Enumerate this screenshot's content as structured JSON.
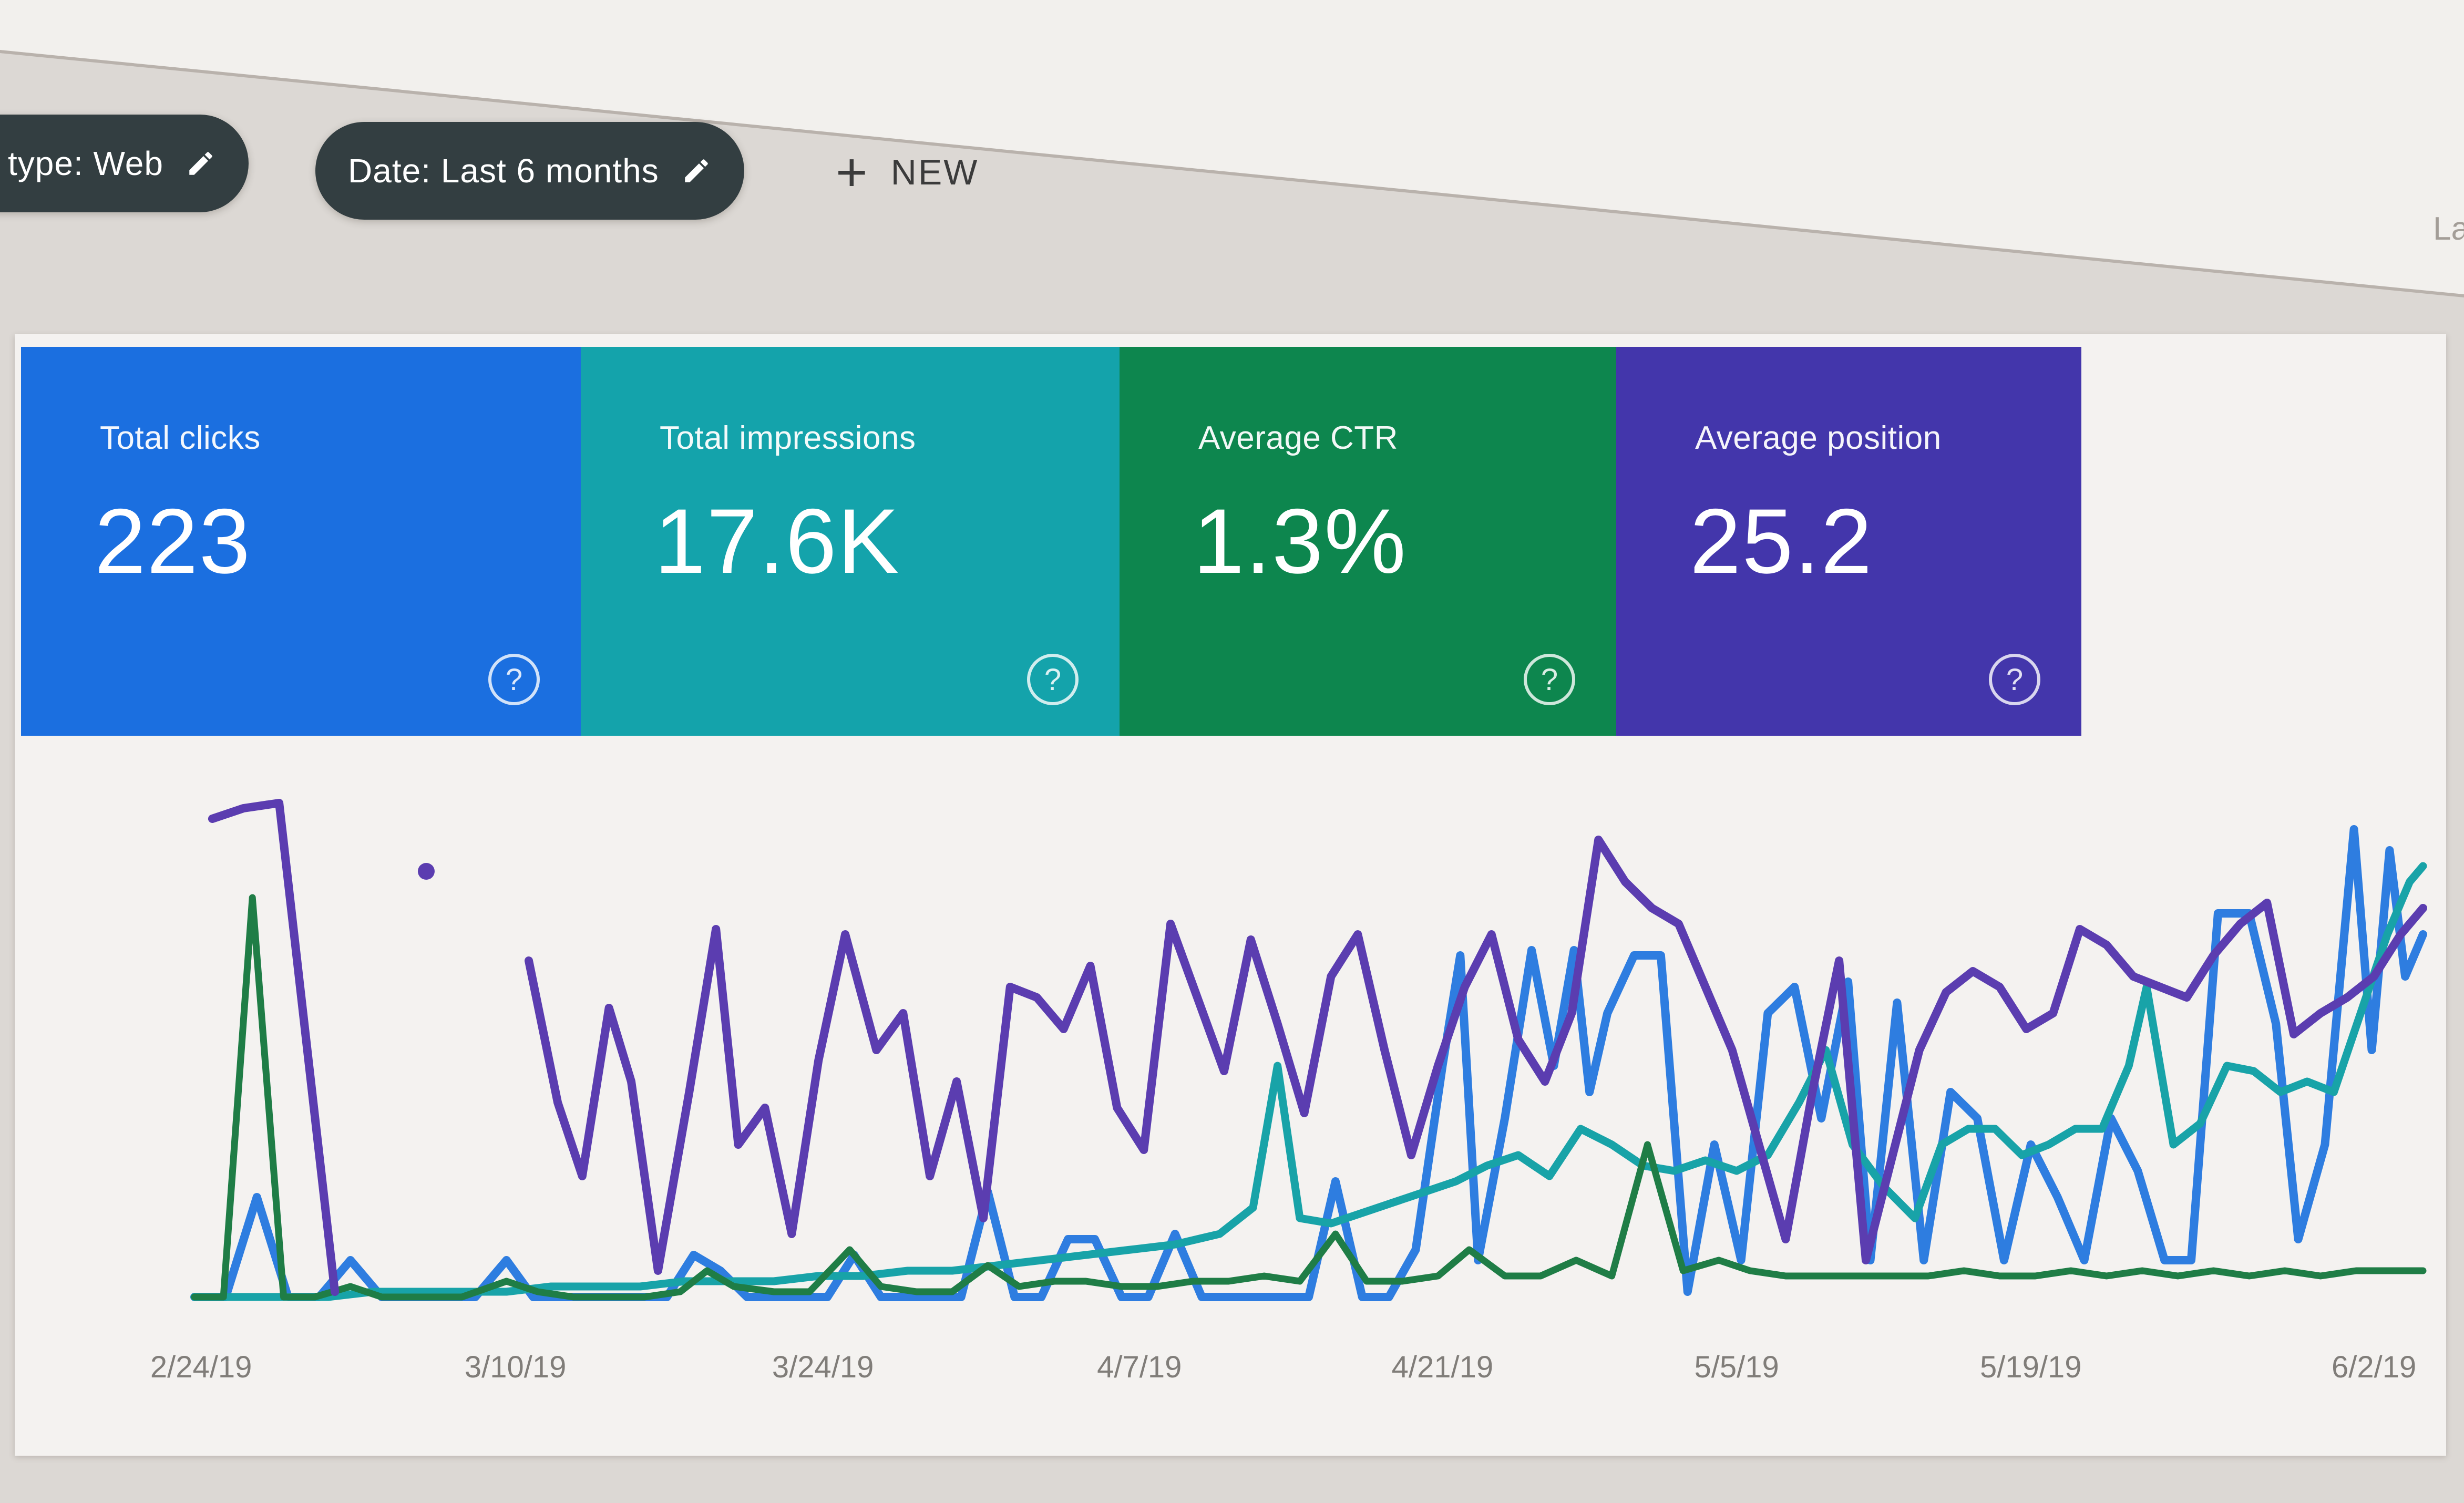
{
  "filters": {
    "type_chip": {
      "label": "type: Web"
    },
    "date_chip": {
      "label": "Date: Last 6 months"
    },
    "new_button": {
      "icon": "+",
      "label": "NEW"
    }
  },
  "partial_text_right": "La",
  "metric_cards": [
    {
      "label": "Total clicks",
      "value": "223",
      "color": "#1b6fe0",
      "help_glyph": "?"
    },
    {
      "label": "Total impressions",
      "value": "17.6K",
      "color": "#14a3ab",
      "help_glyph": "?"
    },
    {
      "label": "Average CTR",
      "value": "1.3%",
      "color": "#0d864e",
      "help_glyph": "?"
    },
    {
      "label": "Average position",
      "value": "25.2",
      "color": "#4336ab",
      "help_glyph": "?"
    }
  ],
  "chart_data": {
    "type": "line",
    "title": "",
    "xlabel": "",
    "ylabel": "",
    "grid": false,
    "legend_visible": false,
    "y_axis_visible": false,
    "x_axis": {
      "labels": [
        {
          "text": "2/24/19",
          "pos": 0.3
        },
        {
          "text": "3/10/19",
          "pos": 14.4
        },
        {
          "text": "3/24/19",
          "pos": 28.2
        },
        {
          "text": "4/7/19",
          "pos": 42.4
        },
        {
          "text": "4/21/19",
          "pos": 56.0
        },
        {
          "text": "5/5/19",
          "pos": 69.2
        },
        {
          "text": "5/19/19",
          "pos": 82.4
        },
        {
          "text": "6/2/19",
          "pos": 97.8
        }
      ]
    },
    "value_scale_note": "y values are percent of plot height above baseline (no y axis shown in UI)",
    "series": [
      {
        "id": "clicks",
        "name": "Clicks",
        "color": "#2e7de0",
        "width": 16,
        "points": [
          [
            0,
            1
          ],
          [
            1.4,
            1
          ],
          [
            2.8,
            20
          ],
          [
            4.2,
            1
          ],
          [
            5.6,
            1
          ],
          [
            7,
            8
          ],
          [
            8.4,
            1
          ],
          [
            9.8,
            1
          ],
          [
            11.2,
            1
          ],
          [
            12.6,
            1
          ],
          [
            14,
            8
          ],
          [
            15.2,
            1
          ],
          [
            16.4,
            1
          ],
          [
            17.6,
            1
          ],
          [
            18.8,
            1
          ],
          [
            20,
            1
          ],
          [
            21.2,
            1
          ],
          [
            22.4,
            9
          ],
          [
            23.6,
            6
          ],
          [
            24.8,
            1
          ],
          [
            26,
            1
          ],
          [
            27.2,
            1
          ],
          [
            28.4,
            1
          ],
          [
            29.6,
            9
          ],
          [
            30.8,
            1
          ],
          [
            32,
            1
          ],
          [
            33.2,
            1
          ],
          [
            34.4,
            1
          ],
          [
            35.6,
            21
          ],
          [
            36.8,
            1
          ],
          [
            38,
            1
          ],
          [
            39.2,
            12
          ],
          [
            40.4,
            12
          ],
          [
            41.6,
            1
          ],
          [
            42.8,
            1
          ],
          [
            44,
            13
          ],
          [
            45.2,
            1
          ],
          [
            46.4,
            1
          ],
          [
            47.6,
            1
          ],
          [
            48.8,
            1
          ],
          [
            50,
            1
          ],
          [
            51.2,
            23
          ],
          [
            52.4,
            1
          ],
          [
            53.6,
            1
          ],
          [
            54.8,
            10
          ],
          [
            56,
            45
          ],
          [
            56.8,
            66
          ],
          [
            57.6,
            8
          ],
          [
            58.8,
            35
          ],
          [
            60,
            67
          ],
          [
            61,
            45
          ],
          [
            61.9,
            67
          ],
          [
            62.6,
            40
          ],
          [
            63.4,
            55
          ],
          [
            64.6,
            66
          ],
          [
            65.8,
            66
          ],
          [
            67,
            2
          ],
          [
            68.2,
            30
          ],
          [
            69.4,
            8
          ],
          [
            70.6,
            55
          ],
          [
            71.8,
            60
          ],
          [
            73,
            35
          ],
          [
            74.2,
            61
          ],
          [
            75.2,
            8
          ],
          [
            76.4,
            57
          ],
          [
            77.6,
            8
          ],
          [
            78.8,
            40
          ],
          [
            80,
            35
          ],
          [
            81.2,
            8
          ],
          [
            82.4,
            30
          ],
          [
            83.6,
            20
          ],
          [
            84.8,
            8
          ],
          [
            86,
            35
          ],
          [
            87.2,
            25
          ],
          [
            88.4,
            8
          ],
          [
            89.6,
            8
          ],
          [
            90.8,
            74
          ],
          [
            92.2,
            74
          ],
          [
            93.4,
            53
          ],
          [
            94.4,
            12
          ],
          [
            95.6,
            30
          ],
          [
            96.9,
            90
          ],
          [
            97.7,
            48
          ],
          [
            98.5,
            86
          ],
          [
            99.2,
            62
          ],
          [
            100,
            70
          ]
        ]
      },
      {
        "id": "impressions",
        "name": "Impressions",
        "color": "#18a3a8",
        "width": 15,
        "points": [
          [
            0,
            1
          ],
          [
            2,
            1
          ],
          [
            4,
            1
          ],
          [
            6,
            1
          ],
          [
            8,
            2
          ],
          [
            10,
            2
          ],
          [
            12,
            2
          ],
          [
            14,
            2
          ],
          [
            16,
            3
          ],
          [
            18,
            3
          ],
          [
            20,
            3
          ],
          [
            22,
            4
          ],
          [
            24,
            4
          ],
          [
            26,
            4
          ],
          [
            28,
            5
          ],
          [
            30,
            5
          ],
          [
            32,
            6
          ],
          [
            34,
            6
          ],
          [
            36,
            7
          ],
          [
            38,
            8
          ],
          [
            40,
            9
          ],
          [
            42,
            10
          ],
          [
            44,
            11
          ],
          [
            46,
            13
          ],
          [
            47.5,
            18
          ],
          [
            48.6,
            45
          ],
          [
            49.6,
            16
          ],
          [
            51,
            15
          ],
          [
            52.4,
            17
          ],
          [
            53.8,
            19
          ],
          [
            55.2,
            21
          ],
          [
            56.6,
            23
          ],
          [
            58,
            26
          ],
          [
            59.4,
            28
          ],
          [
            60.8,
            24
          ],
          [
            62.2,
            33
          ],
          [
            63.6,
            30
          ],
          [
            65,
            26
          ],
          [
            66.4,
            25
          ],
          [
            67.8,
            27
          ],
          [
            69.2,
            25
          ],
          [
            70.6,
            28
          ],
          [
            72,
            38
          ],
          [
            73.2,
            48
          ],
          [
            74.4,
            30
          ],
          [
            75.8,
            22
          ],
          [
            77.2,
            16
          ],
          [
            78.4,
            30
          ],
          [
            79.6,
            33
          ],
          [
            80.8,
            33
          ],
          [
            82,
            28
          ],
          [
            83.2,
            30
          ],
          [
            84.4,
            33
          ],
          [
            85.6,
            33
          ],
          [
            86.8,
            45
          ],
          [
            87.6,
            60
          ],
          [
            88.8,
            30
          ],
          [
            90,
            34
          ],
          [
            91.2,
            45
          ],
          [
            92.4,
            44
          ],
          [
            93.6,
            40
          ],
          [
            94.8,
            42
          ],
          [
            96,
            40
          ],
          [
            97.2,
            55
          ],
          [
            98.4,
            70
          ],
          [
            99.4,
            80
          ],
          [
            100,
            83
          ]
        ]
      },
      {
        "id": "ctr",
        "name": "CTR",
        "color": "#1f7d46",
        "width": 13,
        "points": [
          [
            0,
            1
          ],
          [
            1.3,
            1
          ],
          [
            2.6,
            77
          ],
          [
            4,
            1
          ],
          [
            5.4,
            1
          ],
          [
            7,
            3
          ],
          [
            8.4,
            1
          ],
          [
            10,
            1
          ],
          [
            12,
            1
          ],
          [
            14,
            4
          ],
          [
            15.4,
            2
          ],
          [
            17,
            1
          ],
          [
            18.6,
            1
          ],
          [
            20.2,
            1
          ],
          [
            21.8,
            2
          ],
          [
            23,
            6
          ],
          [
            24.2,
            3
          ],
          [
            26,
            2
          ],
          [
            27.6,
            2
          ],
          [
            29.4,
            10
          ],
          [
            30.8,
            3
          ],
          [
            32.4,
            2
          ],
          [
            34,
            2
          ],
          [
            35.6,
            7
          ],
          [
            37,
            3
          ],
          [
            38.6,
            4
          ],
          [
            40,
            4
          ],
          [
            41.6,
            3
          ],
          [
            43.2,
            3
          ],
          [
            44.8,
            4
          ],
          [
            46.4,
            4
          ],
          [
            48,
            5
          ],
          [
            49.6,
            4
          ],
          [
            51.2,
            13
          ],
          [
            52.6,
            4
          ],
          [
            54.2,
            4
          ],
          [
            55.8,
            5
          ],
          [
            57.2,
            10
          ],
          [
            58.8,
            5
          ],
          [
            60.4,
            5
          ],
          [
            62,
            8
          ],
          [
            63.6,
            5
          ],
          [
            65.2,
            30
          ],
          [
            66.8,
            6
          ],
          [
            68.4,
            8
          ],
          [
            69.8,
            6
          ],
          [
            71.4,
            5
          ],
          [
            73,
            5
          ],
          [
            74.6,
            5
          ],
          [
            76.2,
            5
          ],
          [
            77.8,
            5
          ],
          [
            79.4,
            6
          ],
          [
            81,
            5
          ],
          [
            82.6,
            5
          ],
          [
            84.2,
            6
          ],
          [
            85.8,
            5
          ],
          [
            87.4,
            6
          ],
          [
            89,
            5
          ],
          [
            90.6,
            6
          ],
          [
            92.2,
            5
          ],
          [
            93.8,
            6
          ],
          [
            95.4,
            5
          ],
          [
            97,
            6
          ],
          [
            98.6,
            6
          ],
          [
            100,
            6
          ]
        ]
      },
      {
        "id": "position",
        "name": "Position",
        "color": "#5b3db0",
        "width": 16,
        "segments": [
          [
            [
              0.8,
              92
            ],
            [
              2.2,
              94
            ],
            [
              3.8,
              95
            ],
            [
              6.3,
              2
            ]
          ],
          [
            [
              15,
              65
            ],
            [
              16.3,
              38
            ],
            [
              17.4,
              24
            ],
            [
              18.6,
              56
            ],
            [
              19.6,
              42
            ],
            [
              20.8,
              6
            ],
            [
              22.2,
              40
            ],
            [
              23.4,
              71
            ],
            [
              24.4,
              30
            ],
            [
              25.6,
              37
            ],
            [
              26.8,
              13
            ],
            [
              28,
              46
            ],
            [
              29.2,
              70
            ],
            [
              30.6,
              48
            ],
            [
              31.8,
              55
            ],
            [
              33,
              24
            ],
            [
              34.2,
              42
            ],
            [
              35.4,
              16
            ],
            [
              36.6,
              60
            ],
            [
              37.8,
              58
            ],
            [
              39,
              52
            ],
            [
              40.2,
              64
            ],
            [
              41.4,
              37
            ],
            [
              42.6,
              29
            ],
            [
              43.8,
              72
            ],
            [
              45,
              58
            ],
            [
              46.2,
              44
            ],
            [
              47.4,
              69
            ],
            [
              48.6,
              53
            ],
            [
              49.8,
              36
            ],
            [
              51,
              62
            ],
            [
              52.2,
              70
            ],
            [
              53.4,
              48
            ],
            [
              54.6,
              28
            ],
            [
              55.8,
              45
            ],
            [
              57,
              60
            ],
            [
              58.2,
              70
            ],
            [
              59.4,
              50
            ],
            [
              60.6,
              42
            ],
            [
              61.8,
              55
            ],
            [
              63,
              88
            ],
            [
              64.2,
              80
            ],
            [
              65.4,
              75
            ],
            [
              66.6,
              72
            ],
            [
              67.8,
              60
            ],
            [
              69,
              48
            ],
            [
              70.2,
              30
            ],
            [
              71.4,
              12
            ],
            [
              72.6,
              40
            ],
            [
              73.8,
              65
            ],
            [
              75,
              8
            ],
            [
              76.2,
              28
            ],
            [
              77.4,
              48
            ],
            [
              78.6,
              59
            ],
            [
              79.8,
              63
            ],
            [
              81,
              60
            ],
            [
              82.2,
              52
            ],
            [
              83.4,
              55
            ],
            [
              84.6,
              71
            ],
            [
              85.8,
              68
            ],
            [
              87,
              62
            ],
            [
              88.2,
              60
            ],
            [
              89.4,
              58
            ],
            [
              90.6,
              66
            ],
            [
              91.8,
              72
            ],
            [
              93,
              76
            ],
            [
              94.2,
              51
            ],
            [
              95.4,
              55
            ],
            [
              96.6,
              58
            ],
            [
              97.8,
              62
            ],
            [
              99,
              70
            ],
            [
              100,
              75
            ]
          ]
        ],
        "isolated_point": [
          10.4,
          82
        ]
      }
    ]
  }
}
